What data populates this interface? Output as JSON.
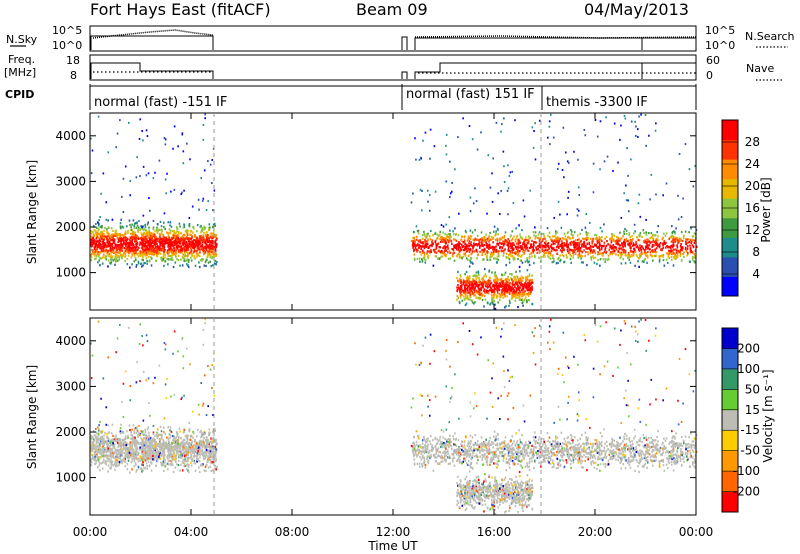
{
  "header": {
    "title": "Fort Hays East (fitACF)",
    "beam": "Beam 09",
    "date": "04/May/2013"
  },
  "params": {
    "nsky_label": "N.Sky",
    "nsearch_label": "N.Search",
    "freq_label_top": "Freq.",
    "freq_label_unit": "[MHz]",
    "nave_label": "Nave",
    "cpid_label": "CPID",
    "nsky_ticks": [
      "10^5",
      "10^0"
    ],
    "nsearch_ticks": [
      "10^5",
      "10^0"
    ],
    "freq_ticks": [
      "18",
      "8"
    ],
    "nave_ticks": [
      "60",
      "0"
    ]
  },
  "cpid_segments": [
    {
      "label": "normal (fast) -151 IF",
      "start_h": 0.0,
      "end_h": 5.0
    },
    {
      "label": "normal (fast) 151 IF",
      "start_h": 12.7,
      "end_h": 18.0
    },
    {
      "label": "themis -3300 IF",
      "start_h": 18.0,
      "end_h": 24.0
    }
  ],
  "chart_data": [
    {
      "type": "heatmap",
      "name_panel": "power",
      "ylabel": "Slant Range [km]",
      "xlabel": "Time UT",
      "x_ticks": [
        "00:00",
        "04:00",
        "08:00",
        "12:00",
        "16:00",
        "20:00",
        "00:00"
      ],
      "xlim_hours": [
        0,
        24
      ],
      "y_ticks": [
        "1000",
        "2000",
        "3000",
        "4000"
      ],
      "ylim_km": [
        180,
        4500
      ],
      "colorbar": {
        "label": "Power [dB]",
        "ticks": [
          "28",
          "24",
          "20",
          "16",
          "12",
          "8",
          "4"
        ],
        "range": [
          0,
          30
        ],
        "colors": [
          "#0000ff",
          "#2b4fb0",
          "#1f8c8c",
          "#3f9a3f",
          "#8cc63f",
          "#e6b800",
          "#ff8c00",
          "#ff3300",
          "#ff0000"
        ]
      },
      "echo_regions": [
        {
          "t_start": 0.0,
          "t_end": 5.0,
          "range_center_km": 1650,
          "range_width_km": 600,
          "note": ""
        },
        {
          "t_start": 12.7,
          "t_end": 24.0,
          "range_center_km": 1600,
          "range_width_km": 500,
          "note": ""
        },
        {
          "t_start": 14.5,
          "t_end": 17.5,
          "range_center_km": 700,
          "range_width_km": 500,
          "note": ""
        }
      ]
    },
    {
      "type": "heatmap",
      "name_panel": "velocity",
      "ylabel": "Slant Range [km]",
      "xlabel": "Time UT",
      "x_ticks": [
        "00:00",
        "04:00",
        "08:00",
        "12:00",
        "16:00",
        "20:00",
        "00:00"
      ],
      "xlim_hours": [
        0,
        24
      ],
      "y_ticks": [
        "1000",
        "2000",
        "3000",
        "4000"
      ],
      "ylim_km": [
        180,
        4500
      ],
      "colorbar": {
        "label": "Velocity [m s⁻¹]",
        "ticks": [
          "200",
          "100",
          "50",
          "15",
          "-15",
          "-50",
          "-100",
          "-200"
        ],
        "range": [
          -250,
          250
        ],
        "colors": [
          "#ff0000",
          "#ff6600",
          "#ff9900",
          "#ffcc00",
          "#bdbdb5",
          "#66cc33",
          "#339966",
          "#3366cc",
          "#0000cc"
        ]
      }
    }
  ]
}
